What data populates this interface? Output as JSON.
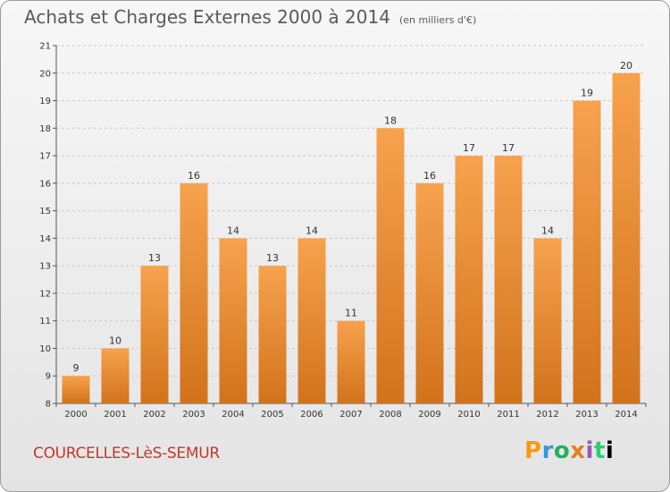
{
  "header": {
    "title": "Achats et Charges Externes 2000 à 2014",
    "unit": "(en milliers d'€)"
  },
  "footer": {
    "place": "COURCELLES-LèS-SEMUR",
    "logo_letters": [
      "P",
      "r",
      "o",
      "x",
      "i",
      "t",
      "i"
    ]
  },
  "colors": {
    "bar_light": "#f7a24e",
    "bar_dark": "#d2731b",
    "place_text": "#c0392b"
  },
  "chart_data": {
    "type": "bar",
    "title": "Achats et Charges Externes 2000 à 2014",
    "subtitle": "(en milliers d'€)",
    "categories": [
      "2000",
      "2001",
      "2002",
      "2003",
      "2004",
      "2005",
      "2006",
      "2007",
      "2008",
      "2009",
      "2010",
      "2011",
      "2012",
      "2013",
      "2014"
    ],
    "values": [
      9,
      10,
      13,
      16,
      14,
      13,
      14,
      11,
      18,
      16,
      17,
      17,
      14,
      19,
      20
    ],
    "ylim": [
      8,
      21
    ],
    "yticks": [
      8,
      9,
      10,
      11,
      12,
      13,
      14,
      15,
      16,
      17,
      18,
      19,
      20,
      21
    ],
    "grid": "horizontal dashed",
    "legend": "none"
  }
}
